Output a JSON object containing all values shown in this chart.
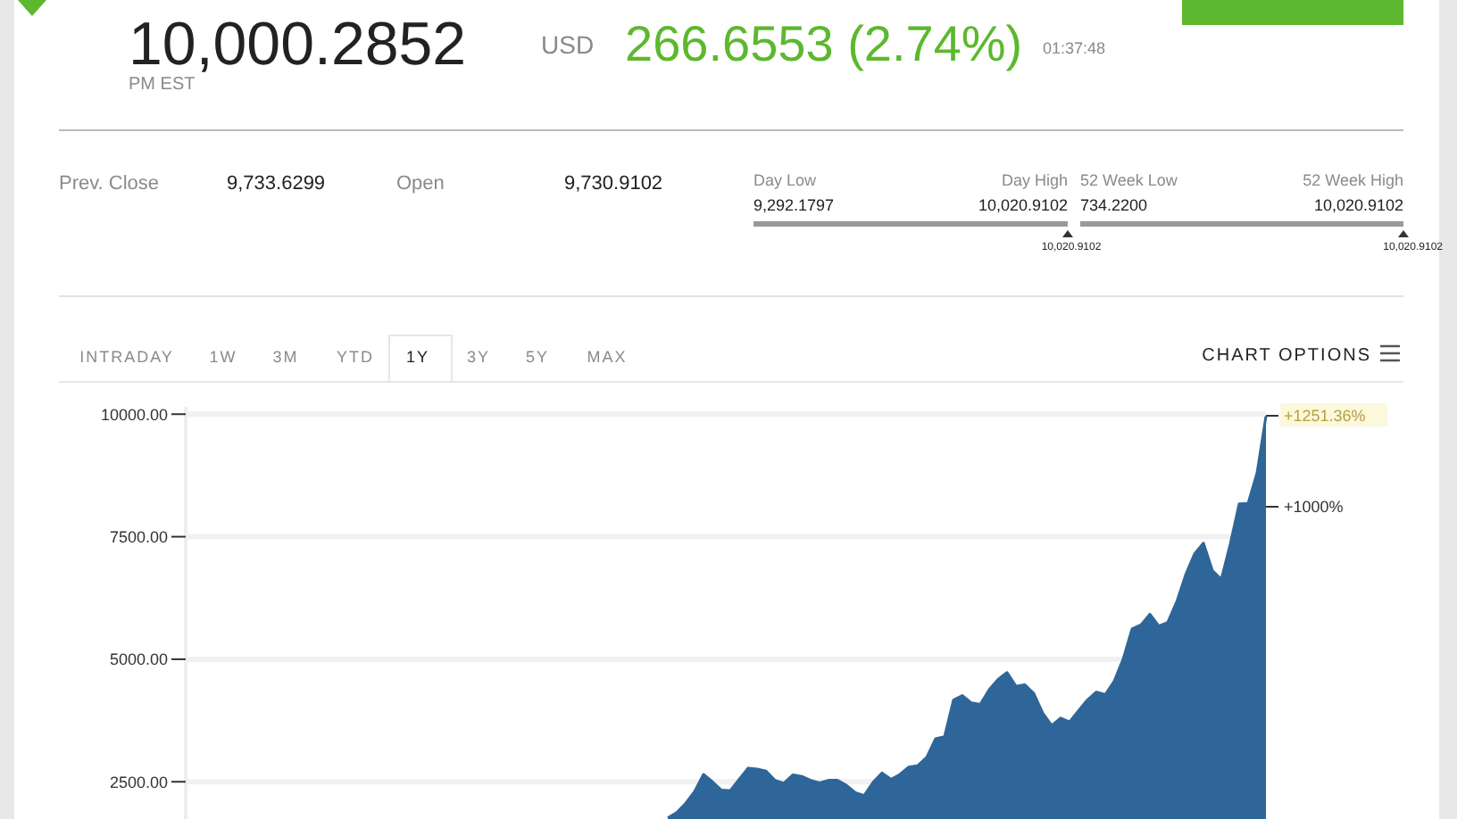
{
  "chart_data": [
    {
      "type": "other",
      "annotations": [
        "10,000.2852",
        "USD",
        "266.6553 (2.74%)",
        "01:37:48",
        "PM EST",
        "Prev. Close",
        "9,733.6299",
        "Open",
        "9,730.9102",
        "Day Low",
        "9,292.1797",
        "Day High",
        "10,020.9102",
        "52 Week Low",
        "734.2200",
        "52 Week High",
        "10,020.9102",
        "10,020.9102",
        "10,020.9102"
      ]
    },
    {
      "type": "area",
      "categories": [
        null,
        null,
        null,
        null,
        null,
        null,
        null,
        null,
        null,
        null,
        null,
        null,
        null,
        null,
        null,
        null,
        null,
        null,
        null,
        null,
        null,
        null,
        null,
        null,
        null,
        null,
        null,
        null,
        null,
        null,
        null,
        null,
        null,
        null,
        null,
        null,
        null,
        null,
        null,
        null,
        null,
        null,
        null,
        null,
        null,
        null,
        null,
        null,
        null,
        null,
        null,
        null,
        null,
        null,
        null,
        null,
        null,
        null,
        null,
        null,
        null,
        null,
        null,
        null,
        null,
        null,
        null,
        null
      ],
      "values": [
        1760,
        1870,
        2060,
        2300,
        2650,
        2500,
        2330,
        2320,
        2550,
        2780,
        2760,
        2720,
        2530,
        2470,
        2640,
        2610,
        2530,
        2480,
        2530,
        2530,
        2430,
        2280,
        2220,
        2490,
        2680,
        2550,
        2650,
        2800,
        2830,
        3000,
        3380,
        3420,
        4170,
        4260,
        4110,
        4080,
        4380,
        4590,
        4730,
        4450,
        4480,
        4300,
        3900,
        3650,
        3800,
        3720,
        3950,
        4170,
        4330,
        4280,
        4550,
        5000,
        5620,
        5700,
        5920,
        5680,
        5750,
        6170,
        6720,
        7150,
        7370,
        6810,
        6630,
        7350,
        8170,
        8180,
        8800,
        9960
      ],
      "color": "#2f6699",
      "ylim": [
        1740,
        10150
      ],
      "yticks": [
        {
          "value": 2500,
          "label": "2500.00"
        },
        {
          "value": 5000,
          "label": "5000.00"
        },
        {
          "value": 7500,
          "label": "7500.00"
        },
        {
          "value": 10000,
          "label": "10000.00"
        }
      ],
      "grid": "y",
      "tick_labels": "y",
      "annotations": [
        "INTRADAY",
        "1W",
        "3M",
        "YTD",
        "1Y",
        "3Y",
        "5Y",
        "MAX",
        "CHART OPTIONS",
        "+1251.36%",
        "+1000%"
      ]
    }
  ]
}
